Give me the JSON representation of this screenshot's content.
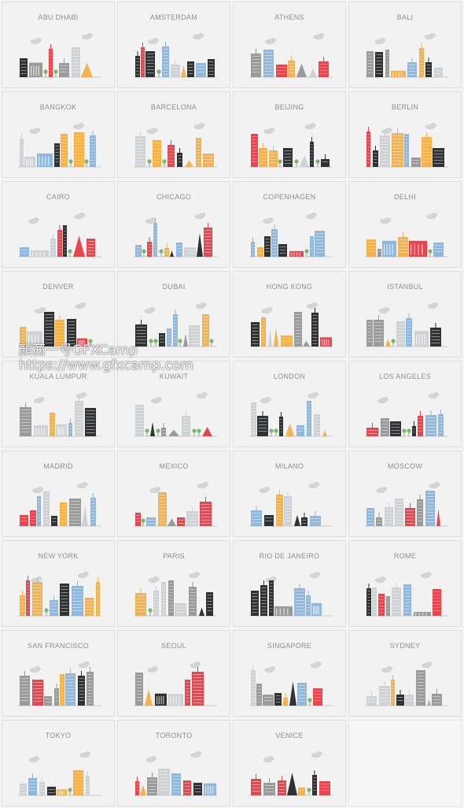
{
  "colors": {
    "red": "#e8454f",
    "blue": "#8fb8dc",
    "orange": "#f5b24b",
    "dark": "#2f3133",
    "gray": "#9a9a9a",
    "light": "#cfd2d4",
    "tree": "#79b86a",
    "cloud": "#d4d4d4",
    "title": "#8f8f8f"
  },
  "cities": [
    {
      "name": "ABU DHABI"
    },
    {
      "name": "AMSTERDAM"
    },
    {
      "name": "ATHENS"
    },
    {
      "name": "BALI"
    },
    {
      "name": "BANGKOK"
    },
    {
      "name": "BARCELONA"
    },
    {
      "name": "BEIJING"
    },
    {
      "name": "BERLIN"
    },
    {
      "name": "CAIRO"
    },
    {
      "name": "CHICAGO"
    },
    {
      "name": "COPENHAGEN"
    },
    {
      "name": "DELHI"
    },
    {
      "name": "DENVER"
    },
    {
      "name": "DUBAI"
    },
    {
      "name": "HONG KONG"
    },
    {
      "name": "ISTANBUL"
    },
    {
      "name": "KUALA LUMPUR"
    },
    {
      "name": "KUWAIT"
    },
    {
      "name": "LONDON"
    },
    {
      "name": "LOS ANGELES"
    },
    {
      "name": "MADRID"
    },
    {
      "name": "MEXICO"
    },
    {
      "name": "MILANO"
    },
    {
      "name": "MOSCOW"
    },
    {
      "name": "NEW YORK"
    },
    {
      "name": "PARIS"
    },
    {
      "name": "RIO DE JANEIRO"
    },
    {
      "name": "ROME"
    },
    {
      "name": "SAN FRANCISCO"
    },
    {
      "name": "SEOUL"
    },
    {
      "name": "SINGAPORE"
    },
    {
      "name": "SYDNEY"
    },
    {
      "name": "TOKYO"
    },
    {
      "name": "TORONTO"
    },
    {
      "name": "VENICE"
    }
  ],
  "watermark": {
    "line1": "顏茜一号GFXCamp",
    "line2": "https://www.gfxcamp.com"
  }
}
